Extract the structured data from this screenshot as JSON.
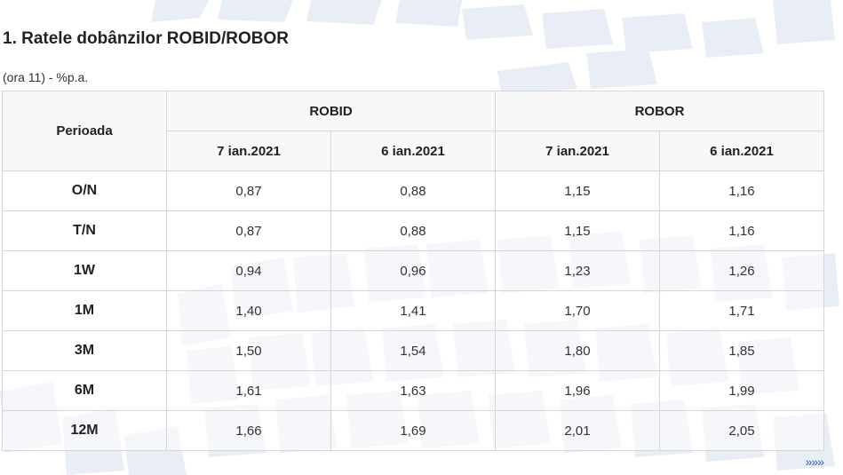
{
  "title": "1. Ratele dobânzilor ROBID/ROBOR",
  "subtitle": "(ora 11) - %p.a.",
  "table": {
    "corner_header": "Perioada",
    "groups": [
      "ROBID",
      "ROBOR"
    ],
    "dates": [
      "7 ian.2021",
      "6 ian.2021",
      "7 ian.2021",
      "6 ian.2021"
    ],
    "rows": [
      {
        "period": "O/N",
        "values": [
          "0,87",
          "0,88",
          "1,15",
          "1,16"
        ]
      },
      {
        "period": "T/N",
        "values": [
          "0,87",
          "0,88",
          "1,15",
          "1,16"
        ]
      },
      {
        "period": "1W",
        "values": [
          "0,94",
          "0,96",
          "1,23",
          "1,26"
        ]
      },
      {
        "period": "1M",
        "values": [
          "1,40",
          "1,41",
          "1,70",
          "1,71"
        ]
      },
      {
        "period": "3M",
        "values": [
          "1,50",
          "1,54",
          "1,80",
          "1,85"
        ]
      },
      {
        "period": "6M",
        "values": [
          "1,61",
          "1,63",
          "1,96",
          "1,99"
        ]
      },
      {
        "period": "12M",
        "values": [
          "1,66",
          "1,69",
          "2,01",
          "2,05"
        ]
      }
    ]
  },
  "more_link": "»»»",
  "colors": {
    "background_pattern": "#e9eef6",
    "link": "#2a64b5",
    "border": "#d6d6d6"
  }
}
